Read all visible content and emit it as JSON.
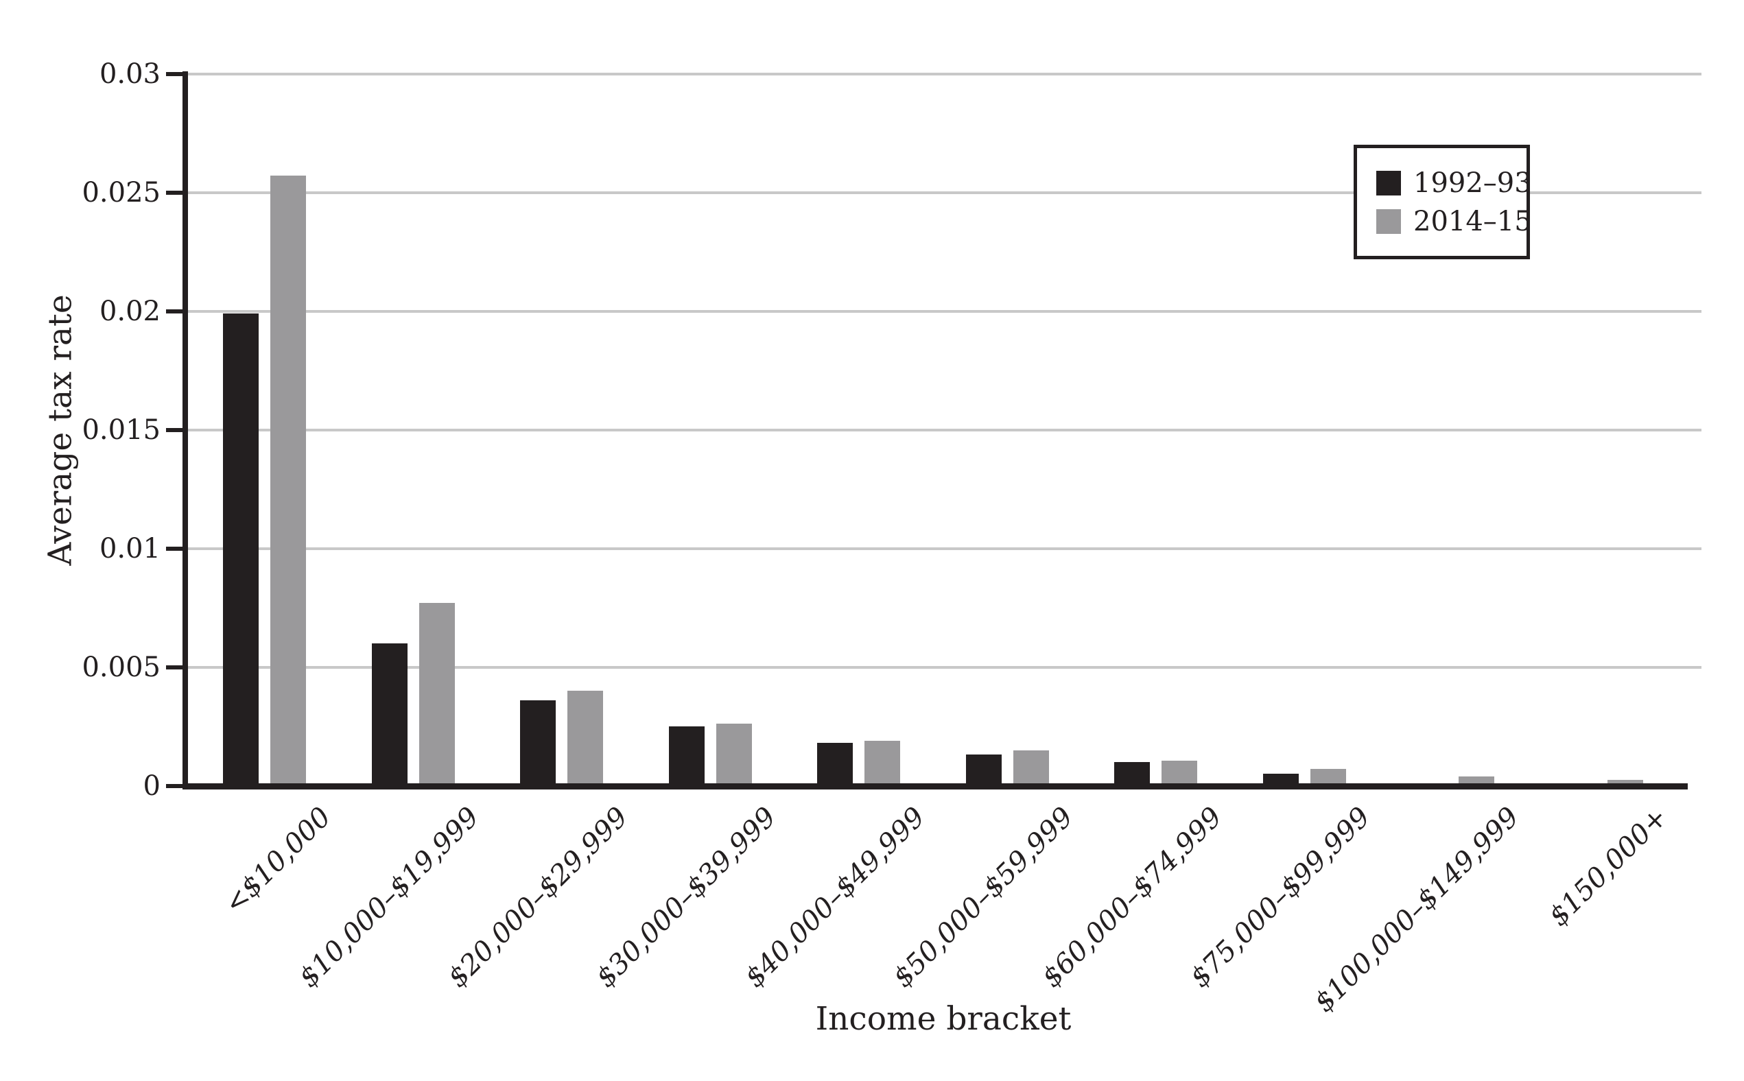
{
  "chart_data": {
    "type": "bar",
    "title": "",
    "xlabel": "Income bracket",
    "ylabel": "Average tax rate",
    "categories": [
      "<$10,000",
      "$10,000–$19,999",
      "$20,000–$29,999",
      "$30,000–$39,999",
      "$40,000–$49,999",
      "$50,000–$59,999",
      "$60,000–$74,999",
      "$75,000–$99,999",
      "$100,000–$149,999",
      "$150,000+"
    ],
    "series": [
      {
        "name": "1992–93",
        "color": "#231f20",
        "values": [
          0.0198,
          0.0059,
          0.0035,
          0.0024,
          0.0017,
          0.0012,
          0.0009,
          0.0004,
          0,
          0
        ]
      },
      {
        "name": "2014–15",
        "color": "#9a999b",
        "values": [
          0.0256,
          0.0076,
          0.0039,
          0.0025,
          0.0018,
          0.0014,
          0.00095,
          0.0006,
          0.0003,
          0.00015
        ]
      }
    ],
    "ylim": [
      0,
      0.03
    ],
    "yticks": [
      0,
      0.005,
      0.01,
      0.015,
      0.02,
      0.025,
      0.03
    ],
    "ytick_labels": [
      "0",
      "0.005",
      "0.01",
      "0.015",
      "0.02",
      "0.025",
      "0.03"
    ],
    "grid": "horizontal",
    "legend_position": "upper right boxed"
  },
  "axes": {
    "x_title": "Income bracket",
    "y_title": "Average tax rate"
  },
  "legend": {
    "items": [
      {
        "label": "1992–93",
        "swatch_color": "#231f20"
      },
      {
        "label": "2014–15",
        "swatch_color": "#9a999b"
      }
    ]
  },
  "colors": {
    "bar_dark": "#231f20",
    "bar_gray": "#9a999b",
    "gridline": "#c8c8c8",
    "axis": "#231f20",
    "text": "#231f20",
    "background": "#ffffff"
  }
}
